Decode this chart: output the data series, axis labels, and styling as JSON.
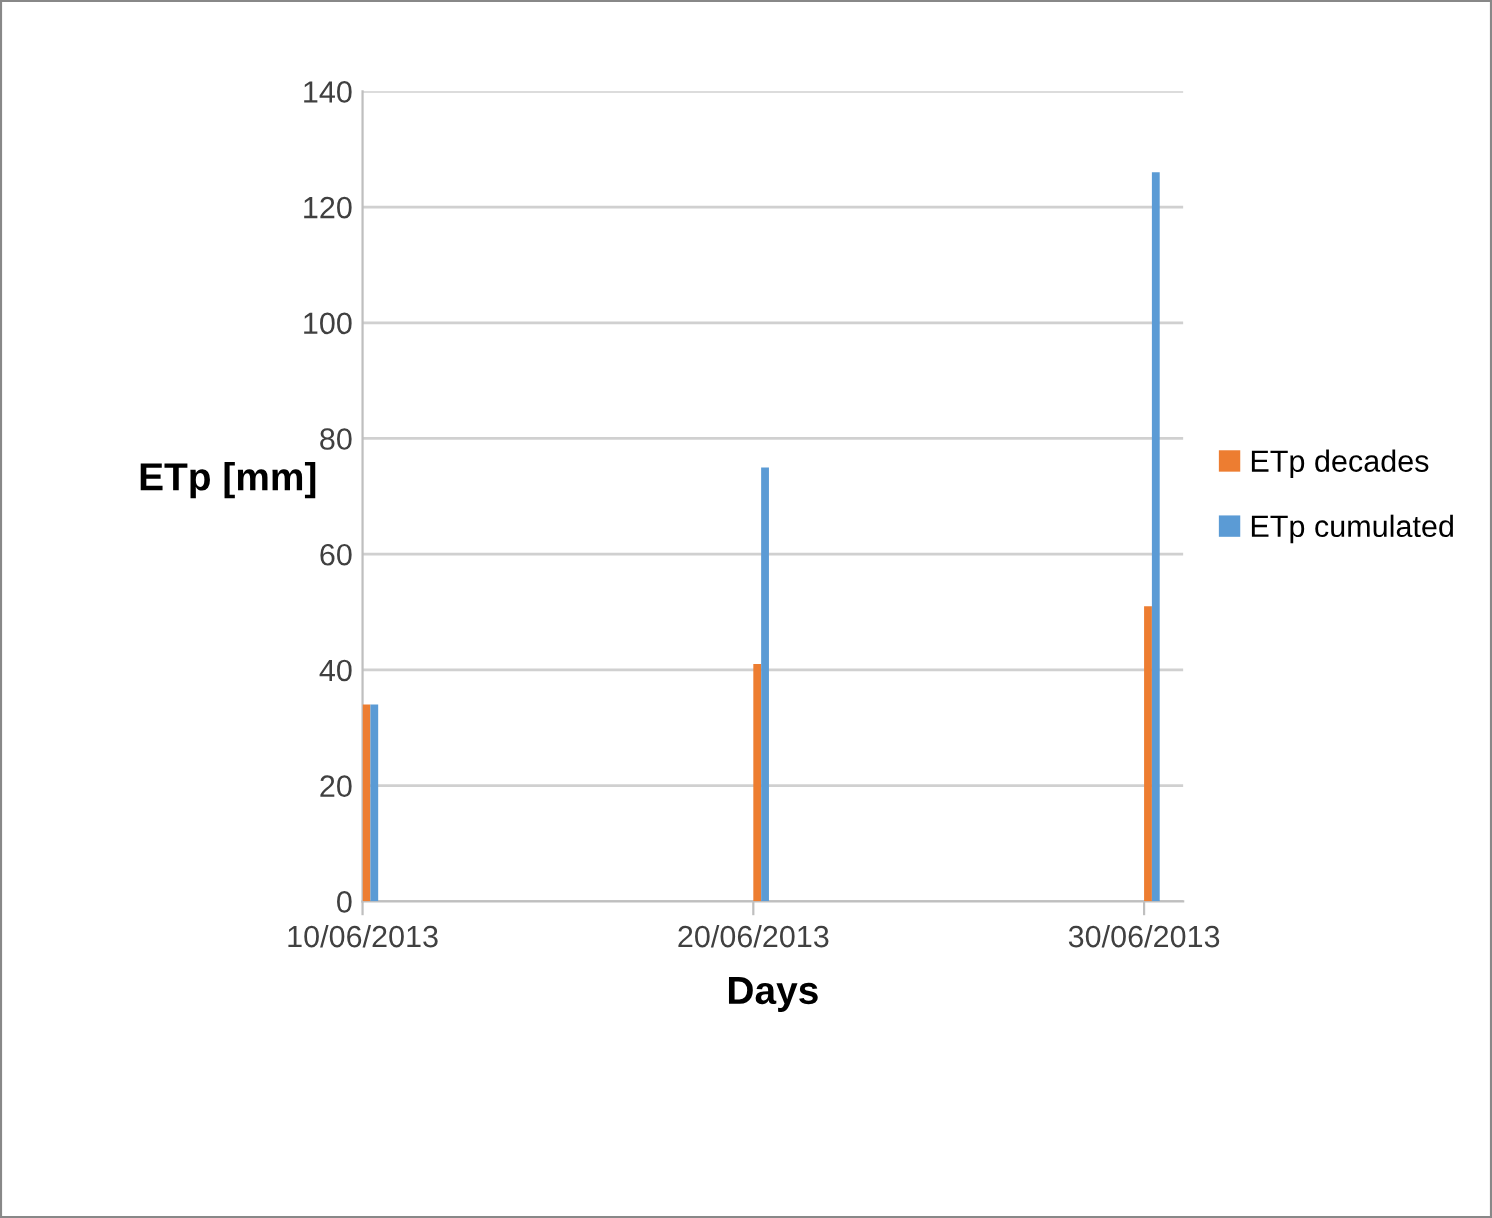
{
  "chart_data": {
    "type": "bar",
    "xlabel": "Days",
    "ylabel": "ETp [mm]",
    "x": [
      "2013-06-10",
      "2013-06-20",
      "2013-06-30"
    ],
    "series": [
      {
        "name": "ETp decades",
        "color": "#ed7d31",
        "values": [
          34,
          41,
          51
        ]
      },
      {
        "name": "ETp cumulated",
        "color": "#5b9bd5",
        "values": [
          34,
          75,
          126
        ]
      }
    ],
    "xlim": [
      "2013-06-10",
      "2013-07-01"
    ],
    "xticks": [
      {
        "value": "2013-06-10",
        "label": "10/06/2013"
      },
      {
        "value": "2013-06-20",
        "label": "20/06/2013"
      },
      {
        "value": "2013-06-30",
        "label": "30/06/2013"
      }
    ],
    "ylim": [
      0,
      140
    ],
    "yticks": [
      0,
      20,
      40,
      60,
      80,
      100,
      120,
      140
    ],
    "grid": "y",
    "legend": "right"
  }
}
